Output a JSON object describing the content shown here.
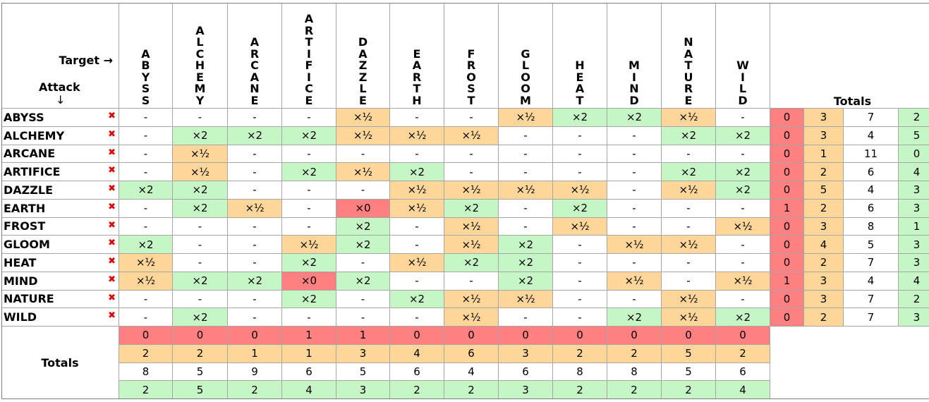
{
  "corner": {
    "target_label": "Target →",
    "attack_label": "Attack",
    "attack_arrow": "↓"
  },
  "marker": "×",
  "types": [
    "ABYSS",
    "ALCHEMY",
    "ARCANE",
    "ARTIFICE",
    "DAZZLE",
    "EARTH",
    "FROST",
    "GLOOM",
    "HEAT",
    "MIND",
    "NATURE",
    "WILD"
  ],
  "totals_label": "Totals",
  "matrix": [
    [
      "-",
      "-",
      "-",
      "-",
      "×½",
      "-",
      "-",
      "×½",
      "×2",
      "×2",
      "×½",
      "-"
    ],
    [
      "-",
      "×2",
      "×2",
      "×2",
      "×½",
      "×½",
      "×½",
      "-",
      "-",
      "-",
      "×2",
      "×2"
    ],
    [
      "-",
      "×½",
      "-",
      "-",
      "-",
      "-",
      "-",
      "-",
      "-",
      "-",
      "-",
      "-"
    ],
    [
      "-",
      "×½",
      "-",
      "×2",
      "×½",
      "×2",
      "-",
      "-",
      "-",
      "-",
      "×2",
      "×2"
    ],
    [
      "×2",
      "×2",
      "-",
      "-",
      "-",
      "×½",
      "×½",
      "×½",
      "×½",
      "-",
      "×½",
      "×2"
    ],
    [
      "-",
      "×2",
      "×½",
      "-",
      "×0",
      "×½",
      "×2",
      "-",
      "×2",
      "-",
      "-",
      "-"
    ],
    [
      "-",
      "-",
      "-",
      "-",
      "×2",
      "-",
      "×½",
      "-",
      "×½",
      "-",
      "-",
      "×½"
    ],
    [
      "×2",
      "-",
      "-",
      "×½",
      "×2",
      "-",
      "×½",
      "×2",
      "-",
      "×½",
      "×½",
      "-"
    ],
    [
      "×½",
      "-",
      "-",
      "×2",
      "-",
      "×½",
      "×2",
      "×2",
      "-",
      "-",
      "-",
      "-"
    ],
    [
      "×½",
      "×2",
      "×2",
      "×0",
      "×2",
      "-",
      "-",
      "×2",
      "-",
      "×½",
      "-",
      "×½"
    ],
    [
      "-",
      "-",
      "-",
      "×2",
      "-",
      "×2",
      "×½",
      "×½",
      "-",
      "-",
      "×½",
      "-"
    ],
    [
      "-",
      "×2",
      "-",
      "-",
      "-",
      "-",
      "×½",
      "-",
      "-",
      "×2",
      "×½",
      "×2"
    ]
  ],
  "row_totals": [
    [
      "0",
      "3",
      "7",
      "2"
    ],
    [
      "0",
      "3",
      "4",
      "5"
    ],
    [
      "0",
      "1",
      "11",
      "0"
    ],
    [
      "0",
      "2",
      "6",
      "4"
    ],
    [
      "0",
      "5",
      "4",
      "3"
    ],
    [
      "1",
      "2",
      "6",
      "3"
    ],
    [
      "0",
      "3",
      "8",
      "1"
    ],
    [
      "0",
      "4",
      "5",
      "3"
    ],
    [
      "0",
      "2",
      "7",
      "3"
    ],
    [
      "1",
      "3",
      "4",
      "4"
    ],
    [
      "0",
      "3",
      "7",
      "2"
    ],
    [
      "0",
      "2",
      "7",
      "3"
    ]
  ],
  "col_totals": [
    [
      "0",
      "0",
      "0",
      "1",
      "1",
      "0",
      "0",
      "0",
      "0",
      "0",
      "0",
      "0"
    ],
    [
      "2",
      "2",
      "1",
      "1",
      "3",
      "4",
      "6",
      "3",
      "2",
      "2",
      "5",
      "2"
    ],
    [
      "8",
      "5",
      "9",
      "6",
      "5",
      "6",
      "4",
      "6",
      "8",
      "8",
      "5",
      "6"
    ],
    [
      "2",
      "5",
      "2",
      "4",
      "3",
      "2",
      "2",
      "3",
      "2",
      "2",
      "2",
      "4"
    ]
  ],
  "colors": {
    "immune": "#ff8080",
    "half": "#ffd699",
    "double": "#c6f5c6",
    "neutral": "#ffffff",
    "mark": "#e00000"
  }
}
